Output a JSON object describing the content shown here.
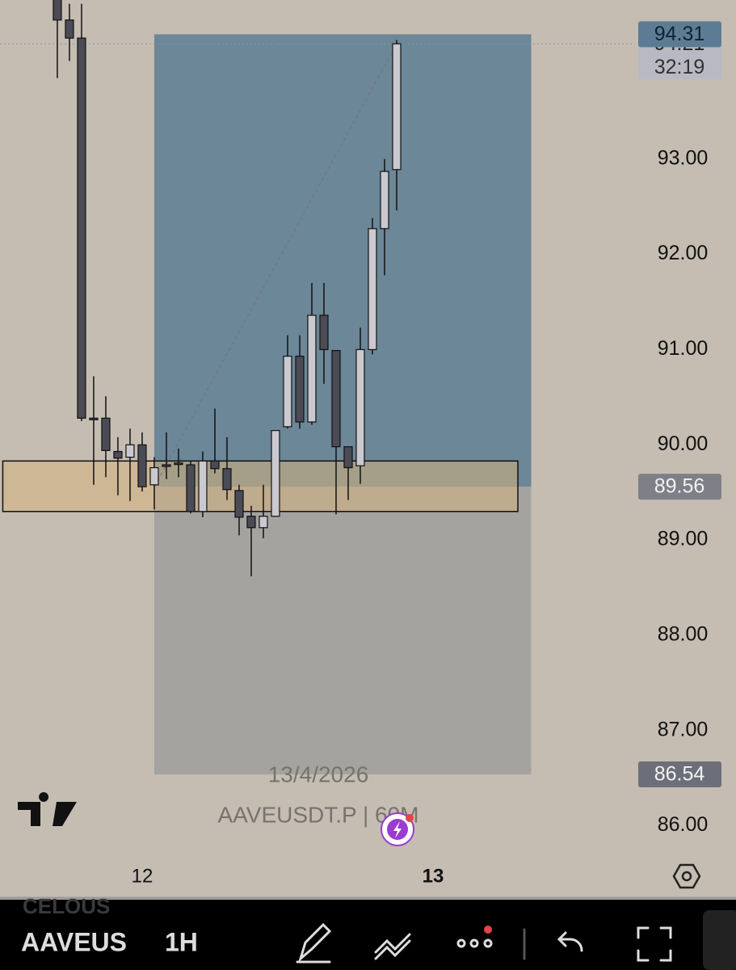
{
  "chart_data": {
    "type": "candlestick",
    "x": [
      -7,
      -6,
      -5,
      -4,
      -3,
      -2,
      -1,
      0,
      1,
      2,
      3,
      4,
      5,
      6,
      7,
      8,
      9,
      10,
      11,
      12,
      13,
      14,
      15,
      16,
      17,
      18,
      19,
      20,
      21
    ],
    "open": [
      94.7,
      94.46,
      94.27,
      90.28,
      90.28,
      89.93,
      89.87,
      90.0,
      89.58,
      89.79,
      89.81,
      89.79,
      89.3,
      89.83,
      89.75,
      89.52,
      89.25,
      89.13,
      89.25,
      90.19,
      90.93,
      90.24,
      91.36,
      90.99,
      89.98,
      89.78,
      91.0,
      92.27,
      92.89
    ],
    "high": [
      94.9,
      94.63,
      94.63,
      90.72,
      90.51,
      90.08,
      90.17,
      90.13,
      89.87,
      90.13,
      89.96,
      89.83,
      89.93,
      90.38,
      90.08,
      89.58,
      89.36,
      89.58,
      90.15,
      91.15,
      91.15,
      91.7,
      91.7,
      90.99,
      89.98,
      91.23,
      92.38,
      93.0,
      94.25
    ],
    "low": [
      93.85,
      94.03,
      90.25,
      89.58,
      89.66,
      89.47,
      89.41,
      89.51,
      89.32,
      89.64,
      89.66,
      89.28,
      89.24,
      89.7,
      89.42,
      89.05,
      88.62,
      89.02,
      89.25,
      90.17,
      90.17,
      90.21,
      90.64,
      89.27,
      89.42,
      89.59,
      90.95,
      91.78,
      92.46
    ],
    "close": [
      94.46,
      94.27,
      90.28,
      90.27,
      89.94,
      89.86,
      90.0,
      89.56,
      89.76,
      89.78,
      89.8,
      89.3,
      89.83,
      89.75,
      89.53,
      89.24,
      89.13,
      89.25,
      90.15,
      90.93,
      90.24,
      91.36,
      91.0,
      89.98,
      89.76,
      91.0,
      92.27,
      92.87,
      94.21
    ],
    "up_color": "#c9c9cf",
    "down_color": "#4b4b56",
    "xlim": [
      -11.73,
      40.6
    ],
    "ylim": [
      85.25,
      94.67
    ],
    "xticks": [
      {
        "value": 0,
        "label": "12"
      },
      {
        "value": 24,
        "label": "13"
      }
    ],
    "yticks": [
      {
        "value": 86,
        "label": "86.00"
      },
      {
        "value": 87,
        "label": "87.00"
      },
      {
        "value": 88,
        "label": "88.00"
      },
      {
        "value": 89,
        "label": "89.00"
      },
      {
        "value": 90,
        "label": "90.00"
      },
      {
        "value": 91,
        "label": "91.00"
      },
      {
        "value": 92,
        "label": "92.00"
      },
      {
        "value": 93,
        "label": "93.00"
      }
    ],
    "position": {
      "start": 1,
      "end": 32.1,
      "target": 94.31,
      "entry": 89.56,
      "stop": 86.54
    },
    "zone": {
      "start": -11.5,
      "end": 31,
      "top": 89.83,
      "bottom": 89.3
    },
    "countdown": "32:19",
    "watermark": [
      "13/4/2026",
      "AAVEUSDT.P | 60M"
    ]
  },
  "toolbar": {
    "faint_symbol": "CELOUS",
    "symbol": "AAVEUS",
    "interval": "1H"
  }
}
